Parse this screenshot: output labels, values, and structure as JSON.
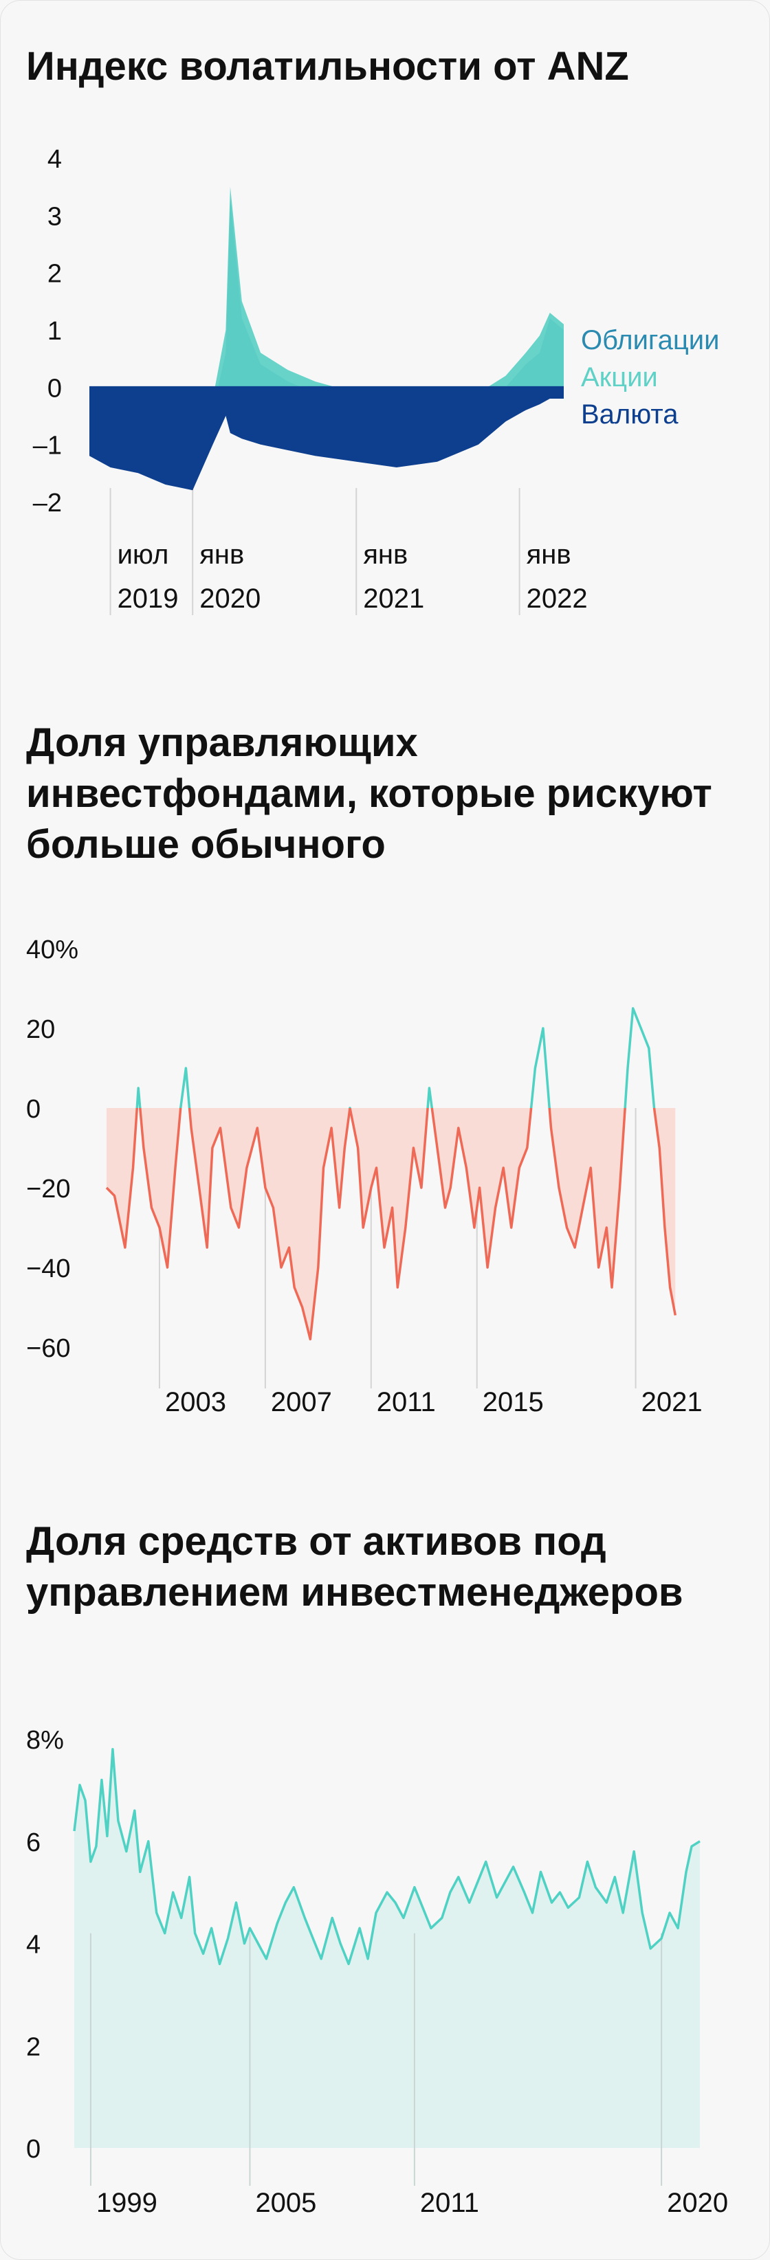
{
  "chart_data": [
    {
      "type": "area",
      "title": "Индекс волатильности от ANZ",
      "yticks": [
        "4",
        "3",
        "2",
        "1",
        "0",
        "–1",
        "–2"
      ],
      "ylim": [
        -2,
        4
      ],
      "xlim": [
        "2019-05-15",
        "2022-04-10"
      ],
      "xticks": [
        {
          "month": "июл",
          "year": "2019",
          "date": "2019-07-01"
        },
        {
          "month": "янв",
          "year": "2020",
          "date": "2020-01-01"
        },
        {
          "month": "янв",
          "year": "2021",
          "date": "2021-01-01"
        },
        {
          "month": "янв",
          "year": "2022",
          "date": "2022-01-01"
        }
      ],
      "legend": "right",
      "series": [
        {
          "name": "Облигации",
          "color": "#2a8ab0",
          "x": [
            "2019-05-15",
            "2019-07-01",
            "2019-09-01",
            "2019-11-01",
            "2020-01-01",
            "2020-02-15",
            "2020-03-15",
            "2020-03-25",
            "2020-04-20",
            "2020-06-01",
            "2020-08-01",
            "2020-10-01",
            "2021-01-01",
            "2021-04-01",
            "2021-07-01",
            "2021-10-01",
            "2021-12-01",
            "2022-01-15",
            "2022-02-15",
            "2022-03-10",
            "2022-04-10"
          ],
          "y": [
            -0.4,
            -0.6,
            -0.8,
            -0.9,
            -0.8,
            -0.4,
            0.6,
            3.3,
            1.2,
            0.4,
            0.1,
            -0.1,
            -0.3,
            -0.4,
            -0.3,
            -0.2,
            0.0,
            0.4,
            0.6,
            1.2,
            1.0
          ]
        },
        {
          "name": "Акции",
          "color": "#5fd1c6",
          "x": [
            "2019-05-15",
            "2019-07-01",
            "2019-09-01",
            "2019-11-01",
            "2020-01-01",
            "2020-02-15",
            "2020-03-15",
            "2020-03-25",
            "2020-04-20",
            "2020-06-01",
            "2020-08-01",
            "2020-10-01",
            "2021-01-01",
            "2021-04-01",
            "2021-07-01",
            "2021-10-01",
            "2021-12-01",
            "2022-01-15",
            "2022-02-15",
            "2022-03-10",
            "2022-04-10"
          ],
          "y": [
            -0.3,
            -0.5,
            -0.6,
            -0.7,
            -0.6,
            -0.2,
            1.0,
            3.5,
            1.5,
            0.6,
            0.3,
            0.1,
            -0.1,
            -0.2,
            -0.1,
            -0.1,
            0.2,
            0.6,
            0.9,
            1.3,
            1.1
          ]
        },
        {
          "name": "Валюта",
          "color": "#0d3f8e",
          "x": [
            "2019-05-15",
            "2019-07-01",
            "2019-09-01",
            "2019-11-01",
            "2020-01-01",
            "2020-02-15",
            "2020-03-15",
            "2020-03-25",
            "2020-04-20",
            "2020-06-01",
            "2020-08-01",
            "2020-10-01",
            "2021-01-01",
            "2021-04-01",
            "2021-07-01",
            "2021-10-01",
            "2021-12-01",
            "2022-01-15",
            "2022-02-15",
            "2022-03-10",
            "2022-04-10"
          ],
          "y": [
            -1.2,
            -1.4,
            -1.5,
            -1.7,
            -1.8,
            -1.0,
            -0.5,
            -0.8,
            -0.9,
            -1.0,
            -1.1,
            -1.2,
            -1.3,
            -1.4,
            -1.3,
            -1.0,
            -0.6,
            -0.4,
            -0.3,
            -0.2,
            -0.2
          ]
        }
      ]
    },
    {
      "type": "area",
      "title": "Доля управляющих инвестфондами, которые рискуют больше обычного",
      "yticks": [
        "40%",
        "20",
        "0",
        "−20",
        "−40",
        "−60"
      ],
      "ylim": [
        -60,
        40
      ],
      "xlim": [
        2000,
        2021.7
      ],
      "xticks": [
        {
          "label": "2003",
          "x": 2002
        },
        {
          "label": "2007",
          "x": 2006
        },
        {
          "label": "2011",
          "x": 2010
        },
        {
          "label": "2015",
          "x": 2014
        },
        {
          "label": "2021",
          "x": 2020
        }
      ],
      "colors": {
        "positive": "#4fd1c4",
        "negative": "#ef6a56",
        "negative_fill": "#f9dcd6"
      },
      "series": [
        {
          "x": [
            2000.0,
            2000.3,
            2000.7,
            2001.0,
            2001.2,
            2001.4,
            2001.7,
            2002.0,
            2002.3,
            2002.6,
            2002.8,
            2003.0,
            2003.2,
            2003.5,
            2003.8,
            2004.0,
            2004.3,
            2004.7,
            2005.0,
            2005.3,
            2005.7,
            2006.0,
            2006.3,
            2006.6,
            2006.9,
            2007.1,
            2007.4,
            2007.7,
            2008.0,
            2008.2,
            2008.5,
            2008.8,
            2009.0,
            2009.2,
            2009.5,
            2009.7,
            2010.0,
            2010.2,
            2010.5,
            2010.8,
            2011.0,
            2011.3,
            2011.6,
            2011.9,
            2012.2,
            2012.5,
            2012.8,
            2013.0,
            2013.3,
            2013.6,
            2013.9,
            2014.1,
            2014.4,
            2014.7,
            2015.0,
            2015.3,
            2015.6,
            2015.9,
            2016.2,
            2016.5,
            2016.8,
            2017.1,
            2017.4,
            2017.7,
            2018.0,
            2018.3,
            2018.6,
            2018.9,
            2019.1,
            2019.4,
            2019.7,
            2019.9,
            2020.2,
            2020.5,
            2020.7,
            2020.9,
            2021.1,
            2021.3,
            2021.5
          ],
          "y": [
            -20,
            -22,
            -35,
            -15,
            5,
            -10,
            -25,
            -30,
            -40,
            -15,
            0,
            10,
            -5,
            -20,
            -35,
            -10,
            -5,
            -25,
            -30,
            -15,
            -5,
            -20,
            -25,
            -40,
            -35,
            -45,
            -50,
            -58,
            -40,
            -15,
            -5,
            -25,
            -10,
            0,
            -10,
            -30,
            -20,
            -15,
            -35,
            -25,
            -45,
            -30,
            -10,
            -20,
            5,
            -10,
            -25,
            -20,
            -5,
            -15,
            -30,
            -20,
            -40,
            -25,
            -15,
            -30,
            -15,
            -10,
            10,
            20,
            -5,
            -20,
            -30,
            -35,
            -25,
            -15,
            -40,
            -30,
            -45,
            -20,
            10,
            25,
            20,
            15,
            0,
            -10,
            -30,
            -45,
            -52
          ]
        }
      ]
    },
    {
      "type": "area",
      "title": "Доля средств от активов под управлением инвестменеджеров",
      "yticks": [
        "8%",
        "6",
        "4",
        "2",
        "0"
      ],
      "ylim": [
        0,
        8
      ],
      "xlim": [
        1998.6,
        2021.4
      ],
      "xticks": [
        {
          "label": "1999",
          "x": 1999.2
        },
        {
          "label": "2005",
          "x": 2005
        },
        {
          "label": "2011",
          "x": 2011
        },
        {
          "label": "2020",
          "x": 2020
        }
      ],
      "colors": {
        "line": "#4fd1c4",
        "fill": "#dff2ef"
      },
      "series": [
        {
          "x": [
            1998.6,
            1998.8,
            1999.0,
            1999.2,
            1999.4,
            1999.6,
            1999.8,
            2000.0,
            2000.2,
            2000.5,
            2000.8,
            2001.0,
            2001.3,
            2001.6,
            2001.9,
            2002.2,
            2002.5,
            2002.8,
            2003.0,
            2003.3,
            2003.6,
            2003.9,
            2004.2,
            2004.5,
            2004.8,
            2005.0,
            2005.3,
            2005.6,
            2006.0,
            2006.3,
            2006.6,
            2007.0,
            2007.3,
            2007.6,
            2008.0,
            2008.3,
            2008.6,
            2009.0,
            2009.3,
            2009.6,
            2010.0,
            2010.3,
            2010.6,
            2011.0,
            2011.3,
            2011.6,
            2012.0,
            2012.3,
            2012.6,
            2013.0,
            2013.3,
            2013.6,
            2014.0,
            2014.3,
            2014.6,
            2015.0,
            2015.3,
            2015.6,
            2016.0,
            2016.3,
            2016.6,
            2017.0,
            2017.3,
            2017.6,
            2018.0,
            2018.3,
            2018.6,
            2019.0,
            2019.3,
            2019.6,
            2020.0,
            2020.3,
            2020.6,
            2020.9,
            2021.1,
            2021.4
          ],
          "y": [
            6.2,
            7.1,
            6.8,
            5.6,
            5.9,
            7.2,
            6.1,
            7.8,
            6.4,
            5.8,
            6.6,
            5.4,
            6.0,
            4.6,
            4.2,
            5.0,
            4.5,
            5.3,
            4.2,
            3.8,
            4.3,
            3.6,
            4.1,
            4.8,
            4.0,
            4.3,
            4.0,
            3.7,
            4.4,
            4.8,
            5.1,
            4.5,
            4.1,
            3.7,
            4.5,
            4.0,
            3.6,
            4.3,
            3.7,
            4.6,
            5.0,
            4.8,
            4.5,
            5.1,
            4.7,
            4.3,
            4.5,
            5.0,
            5.3,
            4.8,
            5.2,
            5.6,
            4.9,
            5.2,
            5.5,
            5.0,
            4.6,
            5.4,
            4.8,
            5.0,
            4.7,
            4.9,
            5.6,
            5.1,
            4.8,
            5.3,
            4.6,
            5.8,
            4.6,
            3.9,
            4.1,
            4.6,
            4.3,
            5.4,
            5.9,
            6.0
          ]
        }
      ]
    }
  ]
}
